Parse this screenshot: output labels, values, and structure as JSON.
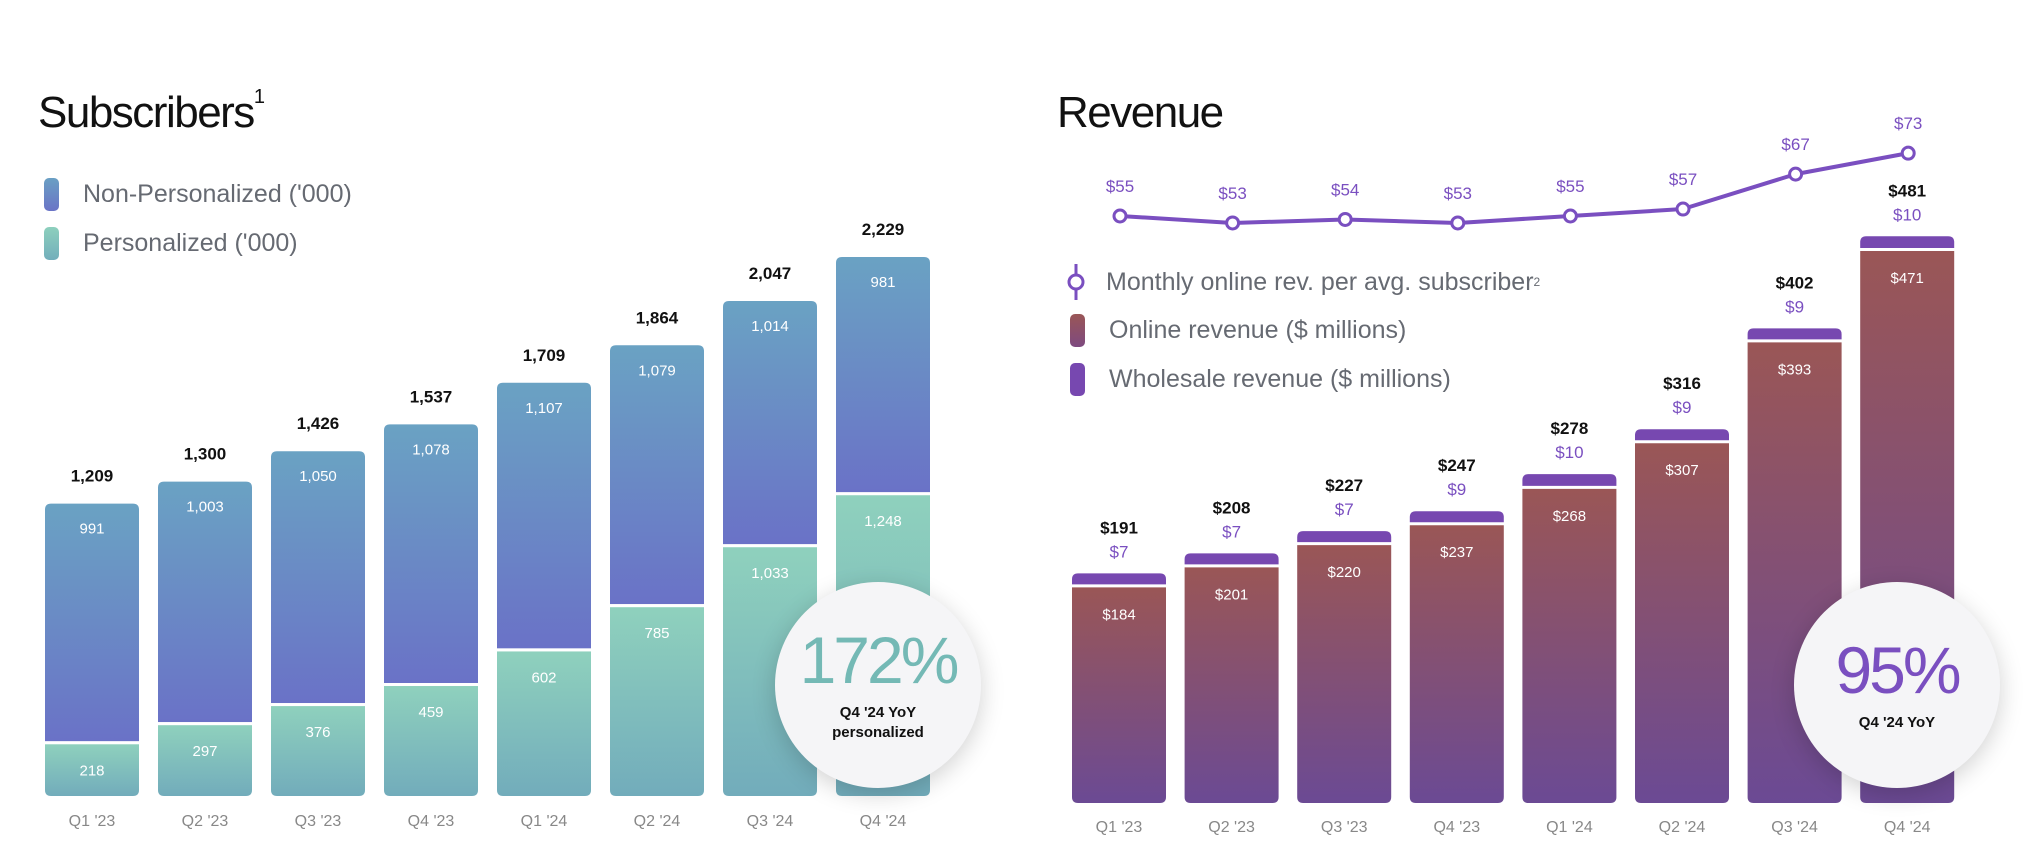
{
  "chart_data": [
    {
      "type": "bar",
      "stacked": true,
      "title": "Subscribers",
      "title_footnote": "1",
      "categories": [
        "Q1 '23",
        "Q2 '23",
        "Q3 '23",
        "Q4 '23",
        "Q1 '24",
        "Q2 '24",
        "Q3 '24",
        "Q4 '24"
      ],
      "totals": [
        1209,
        1300,
        1426,
        1537,
        1709,
        1864,
        2047,
        2229
      ],
      "series": [
        {
          "name": "Personalized ('000)",
          "values": [
            218,
            297,
            376,
            459,
            602,
            785,
            1033,
            1248
          ],
          "color": "#86c8bc"
        },
        {
          "name": "Non-Personalized ('000)",
          "values": [
            991,
            1003,
            1050,
            1078,
            1107,
            1079,
            1014,
            981
          ],
          "color": "#6a8cc4"
        }
      ],
      "legend": [
        "Non-Personalized ('000)",
        "Personalized ('000)"
      ],
      "legend_placement": "top-left",
      "grid": false,
      "callout": {
        "value": "172%",
        "label_line1": "Q4 '24 YoY",
        "label_line2": "personalized",
        "color": "#74b9b5"
      }
    },
    {
      "type": "bar+line",
      "stacked": true,
      "title": "Revenue",
      "categories": [
        "Q1 '23",
        "Q2 '23",
        "Q3 '23",
        "Q4 '23",
        "Q1 '24",
        "Q2 '24",
        "Q3 '24",
        "Q4 '24"
      ],
      "totals": [
        "$191",
        "$208",
        "$227",
        "$247",
        "$278",
        "$316",
        "$402",
        "$481"
      ],
      "total_values": [
        191,
        208,
        227,
        247,
        278,
        316,
        402,
        481
      ],
      "series": [
        {
          "name": "Online revenue ($ millions)",
          "values": [
            184,
            201,
            220,
            237,
            268,
            307,
            393,
            471
          ],
          "color": "#955560"
        },
        {
          "name": "Wholesale revenue ($ millions)",
          "values": [
            7,
            7,
            7,
            9,
            10,
            9,
            9,
            10
          ],
          "color": "#7748b0"
        }
      ],
      "line": {
        "name": "Monthly online rev. per avg. subscriber",
        "footnote": "2",
        "values": [
          55,
          53,
          54,
          53,
          55,
          57,
          67,
          73
        ],
        "color": "#7a4fc0"
      },
      "legend_placement": "left",
      "grid": false,
      "callout": {
        "value": "95%",
        "label_line1": "Q4 '24 YoY",
        "color": "#7a4fc0"
      }
    }
  ]
}
